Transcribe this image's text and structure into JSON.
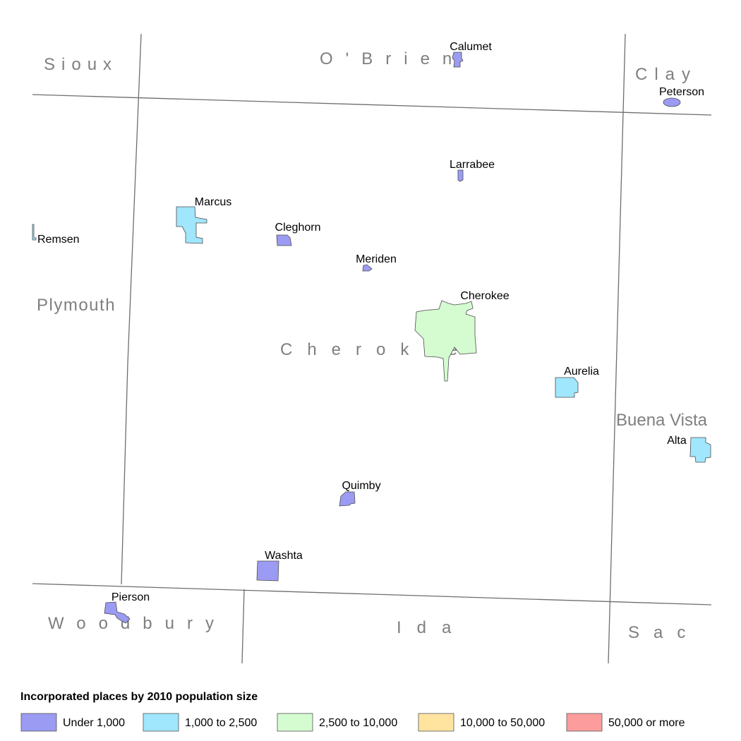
{
  "counties": [
    "Sioux",
    "O'Brien",
    "Clay",
    "Plymouth",
    "Cherokee",
    "Buena Vista",
    "Woodbury",
    "Ida",
    "Sac"
  ],
  "places": [
    {
      "name": "Calumet",
      "population": "Under 1,000"
    },
    {
      "name": "Peterson",
      "population": "Under 1,000"
    },
    {
      "name": "Larrabee",
      "population": "Under 1,000"
    },
    {
      "name": "Marcus",
      "population": "1,000 to 2,500"
    },
    {
      "name": "Remsen",
      "population": "1,000 to 2,500"
    },
    {
      "name": "Cleghorn",
      "population": "Under 1,000"
    },
    {
      "name": "Meriden",
      "population": "Under 1,000"
    },
    {
      "name": "Cherokee",
      "population": "2,500 to 10,000"
    },
    {
      "name": "Aurelia",
      "population": "1,000 to 2,500"
    },
    {
      "name": "Alta",
      "population": "1,000 to 2,500"
    },
    {
      "name": "Quimby",
      "population": "Under 1,000"
    },
    {
      "name": "Washta",
      "population": "Under 1,000"
    },
    {
      "name": "Pierson",
      "population": "Under 1,000"
    }
  ],
  "legend": {
    "title": "Incorporated places by 2010 population size",
    "classes": [
      {
        "label": "Under 1,000",
        "color": "#9b9bf3"
      },
      {
        "label": "1,000 to 2,500",
        "color": "#a0e6fc"
      },
      {
        "label": "2,500 to 10,000",
        "color": "#d5fbd0"
      },
      {
        "label": "10,000 to 50,000",
        "color": "#ffe4a0"
      },
      {
        "label": "50,000 or more",
        "color": "#fd9c9c"
      }
    ]
  }
}
